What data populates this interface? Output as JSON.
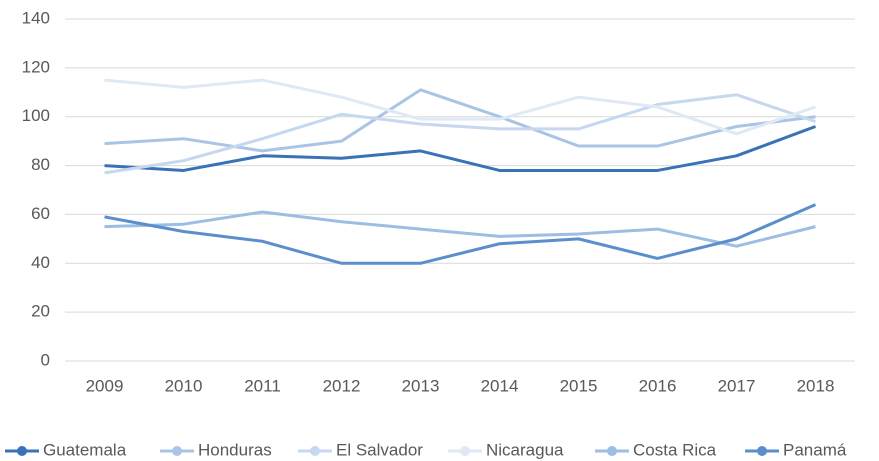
{
  "chart_data": {
    "type": "line",
    "categories": [
      "2009",
      "2010",
      "2011",
      "2012",
      "2013",
      "2014",
      "2015",
      "2016",
      "2017",
      "2018"
    ],
    "series": [
      {
        "name": "Guatemala",
        "color": "#3a72b8",
        "values": [
          80,
          78,
          84,
          83,
          86,
          78,
          78,
          78,
          84,
          96
        ]
      },
      {
        "name": "Honduras",
        "color": "#a9c4e4",
        "values": [
          89,
          91,
          86,
          90,
          111,
          100,
          88,
          88,
          96,
          100
        ]
      },
      {
        "name": "El Salvador",
        "color": "#c6d8ef",
        "values": [
          77,
          82,
          91,
          101,
          97,
          95,
          95,
          105,
          109,
          98
        ]
      },
      {
        "name": "Nicaragua",
        "color": "#dfe9f6",
        "values": [
          115,
          112,
          115,
          108,
          99,
          99,
          108,
          104,
          93,
          104
        ]
      },
      {
        "name": "Costa Rica",
        "color": "#9dbde3",
        "values": [
          55,
          56,
          61,
          57,
          54,
          51,
          52,
          54,
          47,
          55
        ]
      },
      {
        "name": "Panamá",
        "color": "#5b8fcc",
        "values": [
          59,
          53,
          49,
          40,
          40,
          48,
          50,
          42,
          50,
          64
        ]
      }
    ],
    "ylim": [
      0,
      140
    ],
    "yticks": [
      0,
      20,
      40,
      60,
      80,
      100,
      120,
      140
    ],
    "grid": true,
    "legend": "bottom"
  }
}
